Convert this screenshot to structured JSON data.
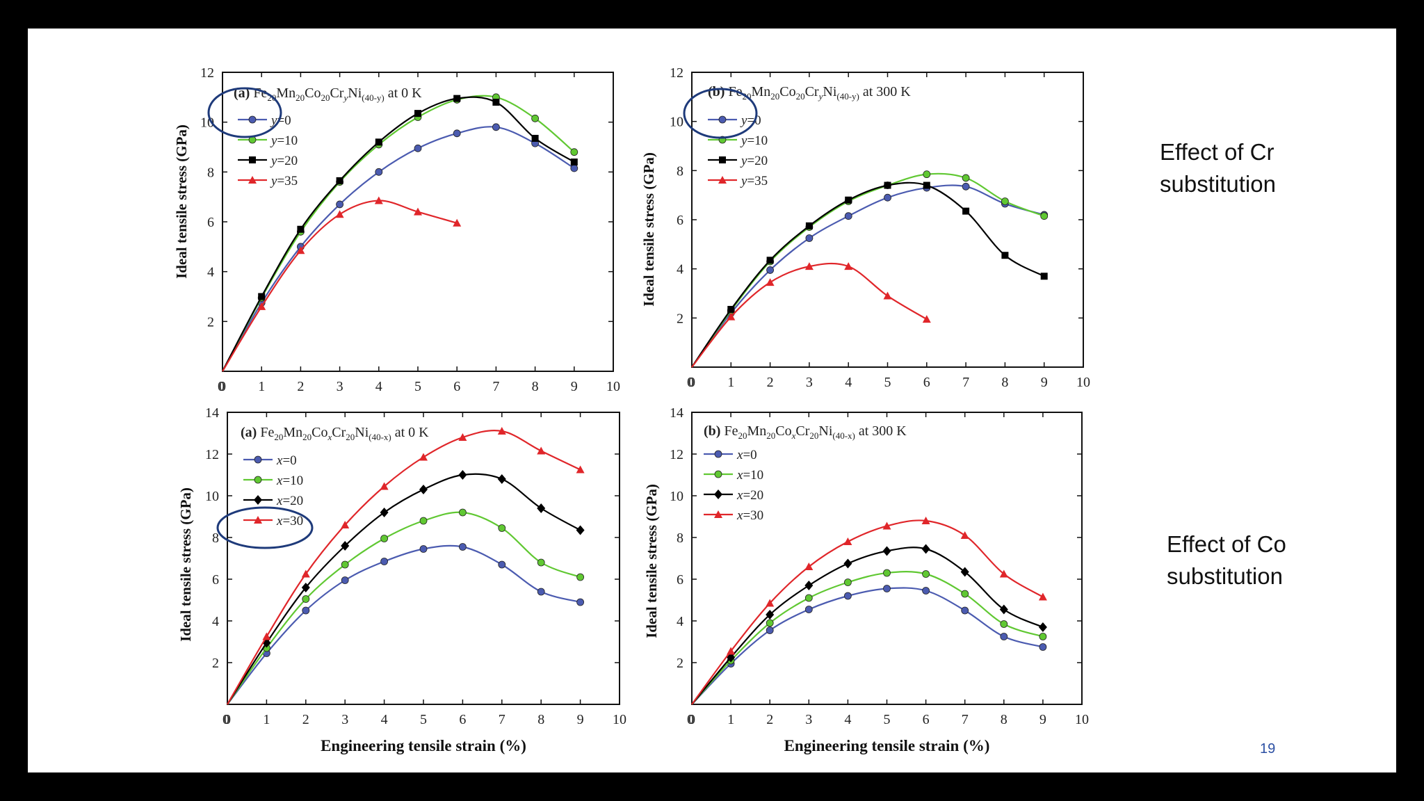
{
  "slide": {
    "labels": [
      "Effect of Cr substitution",
      "Effect of Co substitution"
    ],
    "page_number": "19"
  },
  "colors": {
    "blue": "#4b5bb0",
    "green": "#60c832",
    "black": "#000000",
    "red": "#e0262a",
    "highlight": "#1e3a7a"
  },
  "chart_data": [
    {
      "type": "line",
      "panel": "(a)",
      "title_parts": [
        "Fe",
        "20",
        "Mn",
        "20",
        "Co",
        "20",
        "Cr",
        "y",
        "Ni",
        "(40-y)",
        " at 0 K"
      ],
      "xlabel": "",
      "ylabel": "Ideal tensile stress (GPa)",
      "xlim": [
        0,
        10
      ],
      "ylim": [
        0,
        12
      ],
      "xticks": [
        0,
        1,
        2,
        3,
        4,
        5,
        6,
        7,
        8,
        9,
        10
      ],
      "yticks": [
        2,
        4,
        6,
        8,
        10,
        12
      ],
      "legend": "top-left",
      "legend_var": "y",
      "series": [
        {
          "name": "=0",
          "marker": "circle",
          "color": "#4b5bb0",
          "x": [
            0,
            1,
            2,
            3,
            4,
            5,
            6,
            7,
            8,
            9
          ],
          "values": [
            0,
            2.75,
            5.0,
            6.7,
            8.0,
            8.95,
            9.55,
            9.8,
            9.15,
            8.15
          ]
        },
        {
          "name": "=10",
          "marker": "circle",
          "color": "#60c832",
          "x": [
            0,
            1,
            2,
            3,
            4,
            5,
            6,
            7,
            8,
            9
          ],
          "values": [
            0,
            2.95,
            5.6,
            7.6,
            9.1,
            10.2,
            10.9,
            11.0,
            10.15,
            8.8
          ]
        },
        {
          "name": "=20",
          "marker": "square",
          "color": "#000000",
          "x": [
            0,
            1,
            2,
            3,
            4,
            5,
            6,
            7,
            8,
            9
          ],
          "values": [
            0,
            3.0,
            5.7,
            7.65,
            9.2,
            10.35,
            10.95,
            10.8,
            9.35,
            8.4
          ]
        },
        {
          "name": "=35",
          "marker": "triangle",
          "color": "#e0262a",
          "x": [
            0,
            1,
            2,
            3,
            4,
            5,
            6
          ],
          "values": [
            0,
            2.6,
            4.85,
            6.3,
            6.85,
            6.4,
            5.95
          ]
        }
      ]
    },
    {
      "type": "line",
      "panel": "(b)",
      "title_parts": [
        "Fe",
        "20",
        "Mn",
        "20",
        "Co",
        "20",
        "Cr",
        "y",
        "Ni",
        "(40-y)",
        " at 300 K"
      ],
      "xlabel": "",
      "ylabel": "Ideal tensile stress (GPa)",
      "xlim": [
        0,
        10
      ],
      "ylim": [
        0,
        12
      ],
      "xticks": [
        0,
        1,
        2,
        3,
        4,
        5,
        6,
        7,
        8,
        9,
        10
      ],
      "yticks": [
        2,
        4,
        6,
        8,
        10,
        12
      ],
      "legend": "top-left",
      "legend_var": "y",
      "series": [
        {
          "name": "=0",
          "marker": "circle",
          "color": "#4b5bb0",
          "x": [
            0,
            1,
            2,
            3,
            4,
            5,
            6,
            7,
            8,
            9
          ],
          "values": [
            0,
            2.2,
            3.95,
            5.25,
            6.15,
            6.9,
            7.3,
            7.35,
            6.65,
            6.2
          ]
        },
        {
          "name": "=10",
          "marker": "circle",
          "color": "#60c832",
          "x": [
            0,
            1,
            2,
            3,
            4,
            5,
            6,
            7,
            8,
            9
          ],
          "values": [
            0,
            2.3,
            4.3,
            5.7,
            6.75,
            7.4,
            7.85,
            7.7,
            6.75,
            6.15
          ]
        },
        {
          "name": "=20",
          "marker": "square",
          "color": "#000000",
          "x": [
            0,
            1,
            2,
            3,
            4,
            5,
            6,
            7,
            8,
            9
          ],
          "values": [
            0,
            2.35,
            4.35,
            5.75,
            6.8,
            7.4,
            7.4,
            6.35,
            4.55,
            3.7
          ]
        },
        {
          "name": "=35",
          "marker": "triangle",
          "color": "#e0262a",
          "x": [
            0,
            1,
            2,
            3,
            4,
            5,
            6
          ],
          "values": [
            0,
            2.05,
            3.45,
            4.1,
            4.1,
            2.9,
            1.95
          ]
        }
      ]
    },
    {
      "type": "line",
      "panel": "(a)",
      "title_parts": [
        "Fe",
        "20",
        "Mn",
        "20",
        "Co",
        "x",
        "Cr",
        "20",
        "Ni",
        "(40-x)",
        " at 0 K"
      ],
      "xlabel": "Engineering tensile strain (%)",
      "ylabel": "Ideal tensile stress (GPa)",
      "xlim": [
        0,
        10
      ],
      "ylim": [
        0,
        14
      ],
      "xticks": [
        0,
        1,
        2,
        3,
        4,
        5,
        6,
        7,
        8,
        9,
        10
      ],
      "yticks": [
        2,
        4,
        6,
        8,
        10,
        12,
        14
      ],
      "legend": "top-left",
      "legend_var": "x",
      "series": [
        {
          "name": "=0",
          "marker": "circle",
          "color": "#4b5bb0",
          "x": [
            0,
            1,
            2,
            3,
            4,
            5,
            6,
            7,
            8,
            9
          ],
          "values": [
            0,
            2.45,
            4.5,
            5.95,
            6.85,
            7.45,
            7.55,
            6.7,
            5.4,
            4.9
          ]
        },
        {
          "name": "=10",
          "marker": "circle",
          "color": "#60c832",
          "x": [
            0,
            1,
            2,
            3,
            4,
            5,
            6,
            7,
            8,
            9
          ],
          "values": [
            0,
            2.7,
            5.05,
            6.7,
            7.95,
            8.8,
            9.2,
            8.45,
            6.8,
            6.1
          ]
        },
        {
          "name": "=20",
          "marker": "diamond",
          "color": "#000000",
          "x": [
            0,
            1,
            2,
            3,
            4,
            5,
            6,
            7,
            8,
            9
          ],
          "values": [
            0,
            2.95,
            5.6,
            7.6,
            9.2,
            10.3,
            11.0,
            10.8,
            9.4,
            8.35
          ]
        },
        {
          "name": "=30",
          "marker": "triangle",
          "color": "#e0262a",
          "x": [
            0,
            1,
            2,
            3,
            4,
            5,
            6,
            7,
            8,
            9
          ],
          "values": [
            0,
            3.25,
            6.25,
            8.6,
            10.45,
            11.85,
            12.8,
            13.1,
            12.15,
            11.25
          ]
        }
      ]
    },
    {
      "type": "line",
      "panel": "(b)",
      "title_parts": [
        "Fe",
        "20",
        "Mn",
        "20",
        "Co",
        "x",
        "Cr",
        "20",
        "Ni",
        "(40-x)",
        " at 300 K"
      ],
      "xlabel": "Engineering tensile strain (%)",
      "ylabel": "Ideal tensile stress (GPa)",
      "xlim": [
        0,
        10
      ],
      "ylim": [
        0,
        14
      ],
      "xticks": [
        0,
        1,
        2,
        3,
        4,
        5,
        6,
        7,
        8,
        9,
        10
      ],
      "yticks": [
        2,
        4,
        6,
        8,
        10,
        12,
        14
      ],
      "legend": "top-left",
      "legend_var": "x",
      "series": [
        {
          "name": "=0",
          "marker": "circle",
          "color": "#4b5bb0",
          "x": [
            0,
            1,
            2,
            3,
            4,
            5,
            6,
            7,
            8,
            9
          ],
          "values": [
            0,
            1.95,
            3.55,
            4.55,
            5.2,
            5.55,
            5.45,
            4.5,
            3.25,
            2.75
          ]
        },
        {
          "name": "=10",
          "marker": "circle",
          "color": "#60c832",
          "x": [
            0,
            1,
            2,
            3,
            4,
            5,
            6,
            7,
            8,
            9
          ],
          "values": [
            0,
            2.1,
            3.9,
            5.1,
            5.85,
            6.3,
            6.25,
            5.3,
            3.85,
            3.25
          ]
        },
        {
          "name": "=20",
          "marker": "diamond",
          "color": "#000000",
          "x": [
            0,
            1,
            2,
            3,
            4,
            5,
            6,
            7,
            8,
            9
          ],
          "values": [
            0,
            2.25,
            4.3,
            5.7,
            6.75,
            7.35,
            7.45,
            6.35,
            4.55,
            3.7
          ]
        },
        {
          "name": "=30",
          "marker": "triangle",
          "color": "#e0262a",
          "x": [
            0,
            1,
            2,
            3,
            4,
            5,
            6,
            7,
            8,
            9
          ],
          "values": [
            0,
            2.55,
            4.85,
            6.6,
            7.8,
            8.55,
            8.8,
            8.1,
            6.25,
            5.15
          ]
        }
      ]
    }
  ]
}
